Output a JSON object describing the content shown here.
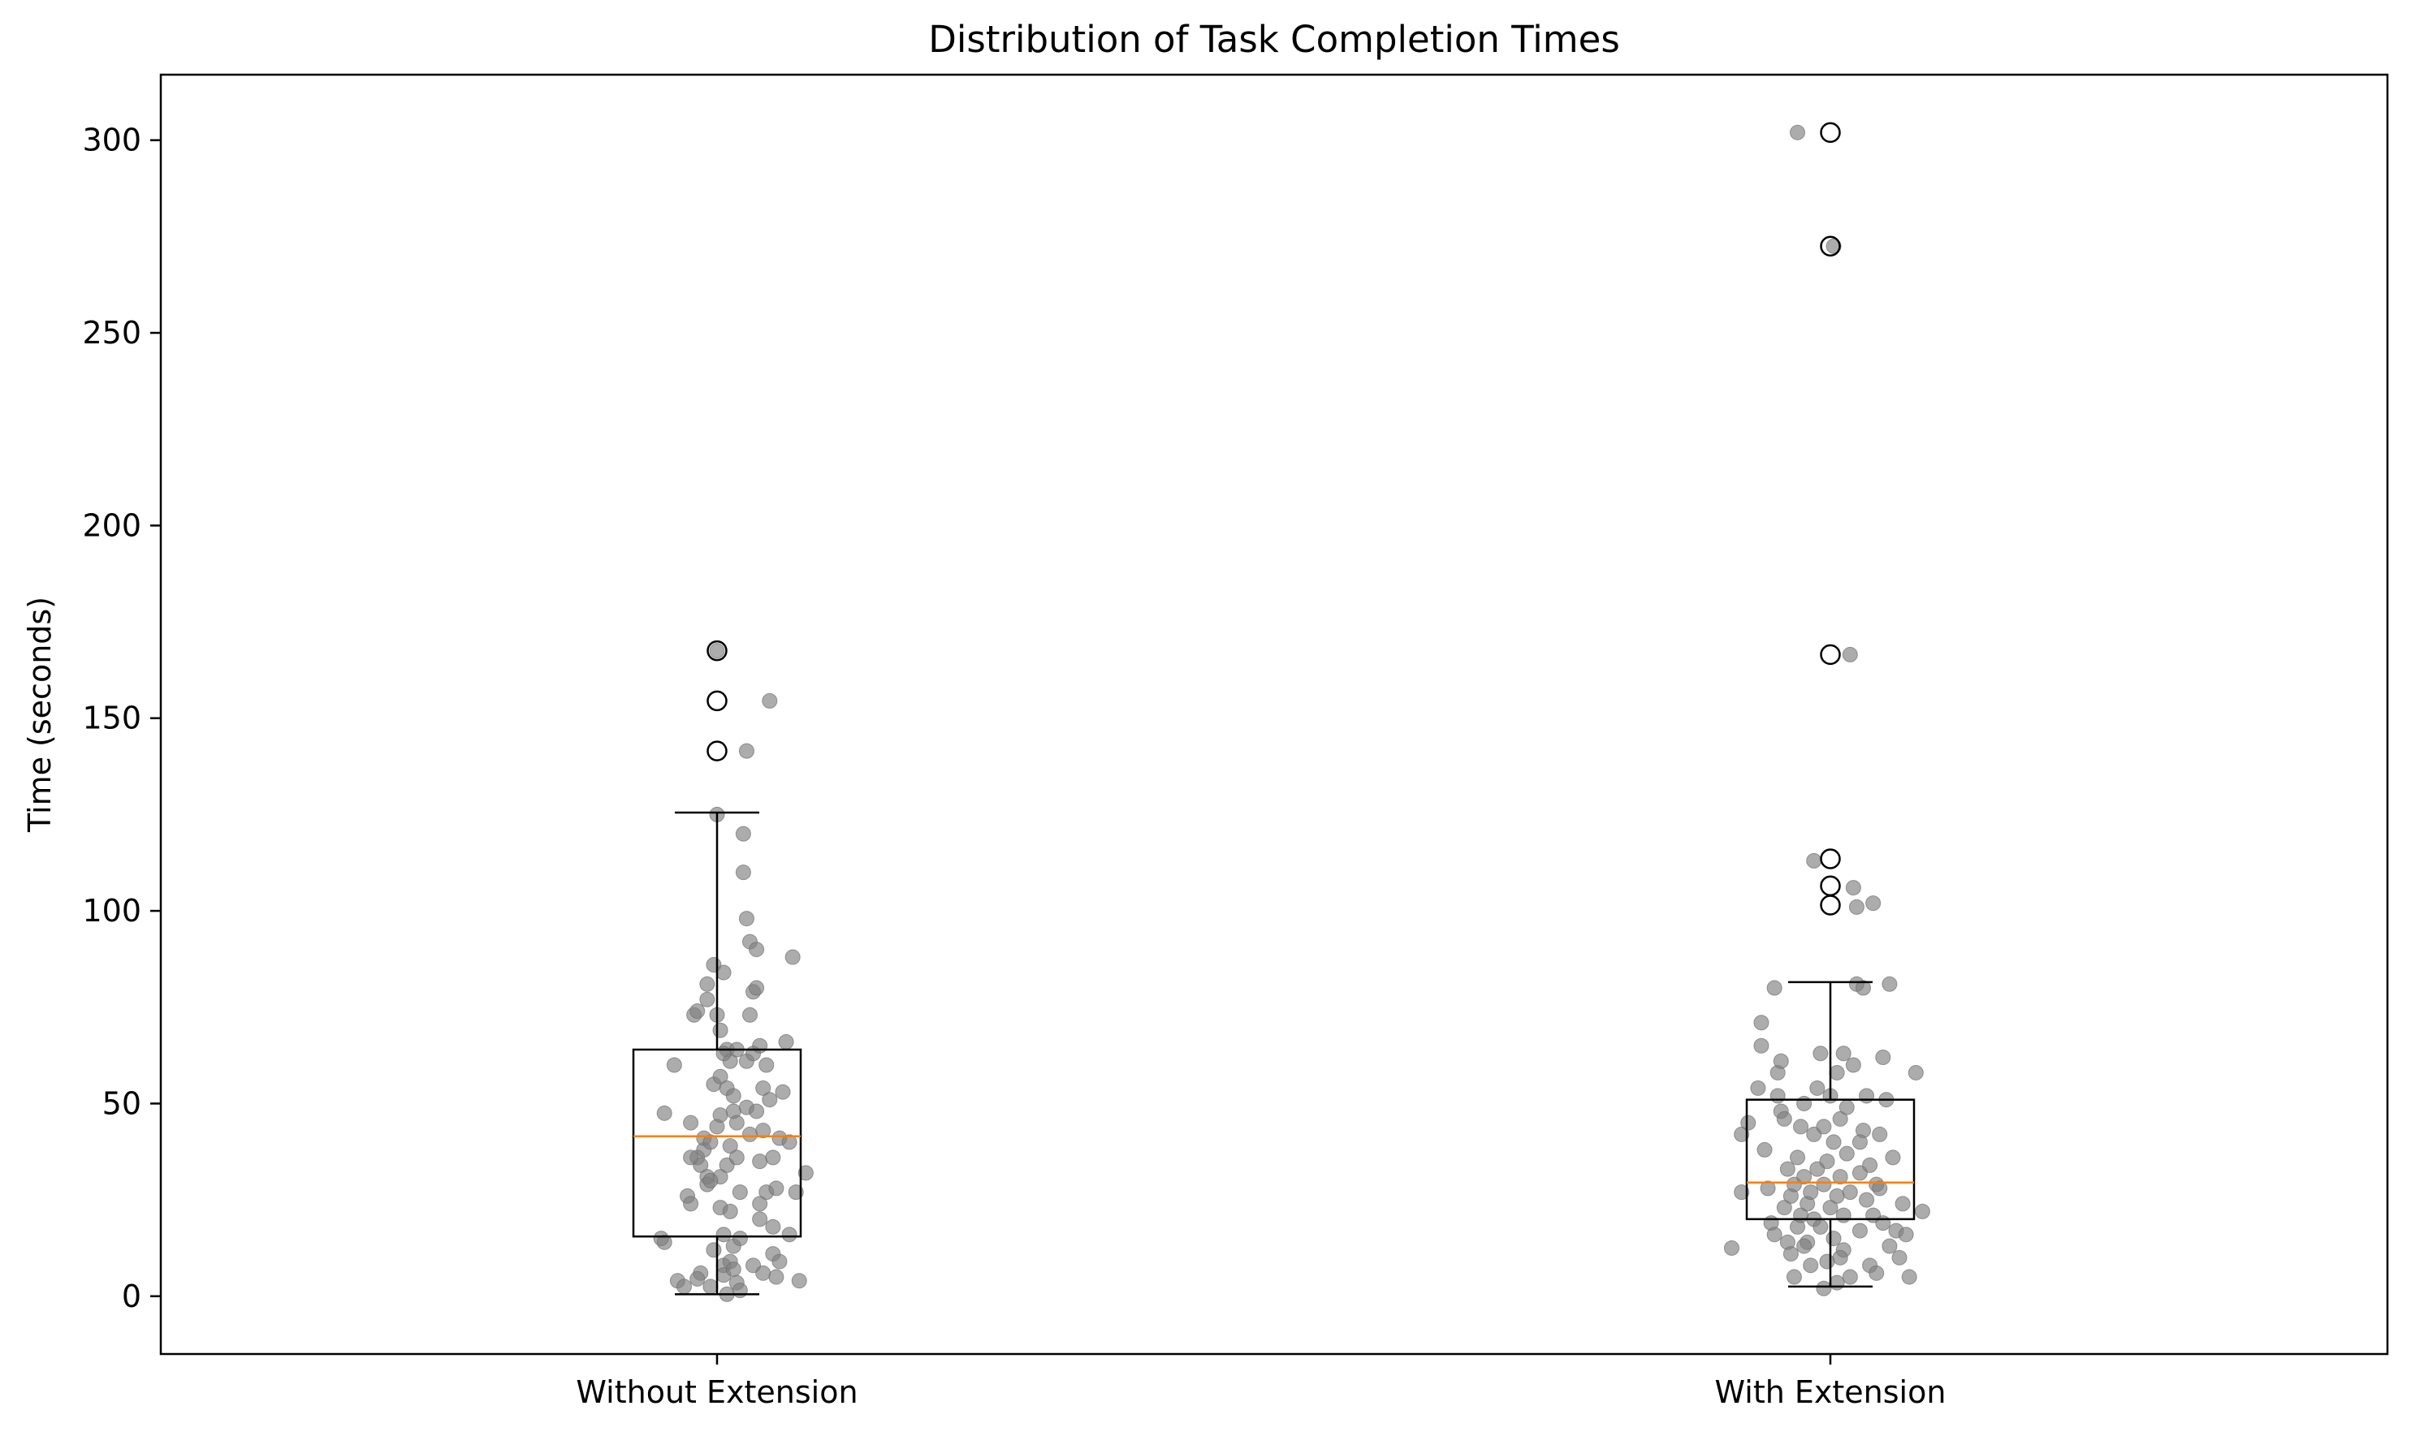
{
  "colors": {
    "median": "#ff7f0e",
    "box": "#000000",
    "jitter": "#808080",
    "outlier_edge": "#000000",
    "background": "#ffffff"
  },
  "chart_data": {
    "type": "box",
    "title": "Distribution of Task Completion Times",
    "xlabel": "",
    "ylabel": "Time (seconds)",
    "ylim": [
      -15,
      317
    ],
    "yticks": [
      0,
      50,
      100,
      150,
      200,
      250,
      300
    ],
    "ytick_labels": [
      "0",
      "50",
      "100",
      "150",
      "200",
      "250",
      "300"
    ],
    "grid": false,
    "legend": "none",
    "categories": [
      "Without Extension",
      "With Extension"
    ],
    "boxes": [
      {
        "whisker_low": 0.5,
        "q1": 15.5,
        "median": 41.5,
        "q3": 64,
        "whisker_high": 125.5,
        "outliers": [
          167.5,
          154.5,
          141.5
        ]
      },
      {
        "whisker_low": 2.5,
        "q1": 20,
        "median": 29.5,
        "q3": 51,
        "whisker_high": 81.5,
        "outliers": [
          302,
          272.5,
          166.5,
          113.5,
          106.5,
          101.5
        ]
      }
    ],
    "jitter_points": [
      [
        [
          -0.16,
          47.5
        ],
        [
          -0.13,
          60
        ],
        [
          -0.16,
          14
        ],
        [
          -0.17,
          15
        ],
        [
          -0.12,
          4
        ],
        [
          -0.1,
          2.5
        ],
        [
          -0.09,
          26
        ],
        [
          -0.08,
          24
        ],
        [
          -0.08,
          45
        ],
        [
          -0.07,
          73
        ],
        [
          -0.06,
          74
        ],
        [
          -0.06,
          36
        ],
        [
          -0.05,
          6
        ],
        [
          -0.05,
          34
        ],
        [
          -0.04,
          38
        ],
        [
          -0.04,
          41
        ],
        [
          -0.03,
          81
        ],
        [
          -0.03,
          77
        ],
        [
          -0.03,
          31
        ],
        [
          -0.03,
          29
        ],
        [
          -0.02,
          40
        ],
        [
          -0.02,
          2.5
        ],
        [
          -0.01,
          12
        ],
        [
          -0.01,
          55
        ],
        [
          -0.01,
          86
        ],
        [
          0.0,
          73
        ],
        [
          0.0,
          44
        ],
        [
          -0.06,
          4.5
        ],
        [
          0.01,
          57
        ],
        [
          0.01,
          69
        ],
        [
          0.01,
          47
        ],
        [
          0.01,
          31
        ],
        [
          0.01,
          23
        ],
        [
          0.02,
          16
        ],
        [
          0.02,
          8
        ],
        [
          0.02,
          5.5
        ],
        [
          0.03,
          34
        ],
        [
          0.03,
          54
        ],
        [
          0.03,
          64
        ],
        [
          0.04,
          39
        ],
        [
          0.04,
          22
        ],
        [
          0.04,
          9
        ],
        [
          0.04,
          61
        ],
        [
          0.02,
          84
        ],
        [
          0.0,
          125
        ],
        [
          0.05,
          52
        ],
        [
          0.05,
          48
        ],
        [
          0.05,
          7
        ],
        [
          0.05,
          13
        ],
        [
          0.06,
          36
        ],
        [
          0.06,
          45
        ],
        [
          0.06,
          64
        ],
        [
          0.06,
          3.5
        ],
        [
          0.07,
          27
        ],
        [
          0.07,
          15
        ],
        [
          0.08,
          120
        ],
        [
          0.08,
          110
        ],
        [
          0.09,
          98
        ],
        [
          0.09,
          61
        ],
        [
          0.09,
          49
        ],
        [
          0.1,
          92
        ],
        [
          0.1,
          73
        ],
        [
          0.1,
          42
        ],
        [
          0.11,
          79
        ],
        [
          0.11,
          63
        ],
        [
          0.11,
          8
        ],
        [
          0.12,
          90
        ],
        [
          0.12,
          80
        ],
        [
          0.12,
          48
        ],
        [
          0.13,
          65
        ],
        [
          0.13,
          35
        ],
        [
          0.13,
          20
        ],
        [
          0.14,
          54
        ],
        [
          0.14,
          43
        ],
        [
          0.14,
          6
        ],
        [
          0.15,
          27
        ],
        [
          0.15,
          60
        ],
        [
          0.16,
          51
        ],
        [
          0.17,
          18
        ],
        [
          0.17,
          36
        ],
        [
          0.17,
          11
        ],
        [
          0.18,
          28
        ],
        [
          0.18,
          5
        ],
        [
          0.19,
          41
        ],
        [
          0.2,
          53
        ],
        [
          0.21,
          66
        ],
        [
          0.22,
          40
        ],
        [
          0.23,
          88
        ],
        [
          0.24,
          27
        ],
        [
          0.25,
          4
        ],
        [
          0.27,
          32
        ],
        [
          0.16,
          154.5
        ],
        [
          0.09,
          141.5
        ],
        [
          0.0,
          167.5
        ],
        [
          0.03,
          0.5
        ],
        [
          0.07,
          1.5
        ],
        [
          -0.02,
          30
        ],
        [
          0.02,
          63
        ],
        [
          -0.08,
          36
        ],
        [
          0.19,
          9
        ],
        [
          0.22,
          16
        ],
        [
          0.13,
          24
        ]
      ],
      [
        [
          -0.3,
          12.5
        ],
        [
          -0.27,
          27
        ],
        [
          -0.27,
          42
        ],
        [
          -0.25,
          45
        ],
        [
          -0.22,
          54
        ],
        [
          -0.21,
          65
        ],
        [
          -0.21,
          71
        ],
        [
          -0.2,
          38
        ],
        [
          -0.19,
          28
        ],
        [
          -0.18,
          19
        ],
        [
          -0.17,
          16
        ],
        [
          -0.17,
          80
        ],
        [
          -0.16,
          52
        ],
        [
          -0.16,
          58
        ],
        [
          -0.15,
          61
        ],
        [
          -0.15,
          48
        ],
        [
          -0.14,
          23
        ],
        [
          -0.13,
          33
        ],
        [
          -0.13,
          14
        ],
        [
          -0.12,
          26
        ],
        [
          -0.12,
          11
        ],
        [
          -0.11,
          29
        ],
        [
          -0.1,
          36
        ],
        [
          -0.1,
          18
        ],
        [
          -0.09,
          44
        ],
        [
          -0.09,
          21
        ],
        [
          -0.08,
          50
        ],
        [
          -0.08,
          31
        ],
        [
          -0.07,
          24
        ],
        [
          -0.07,
          14
        ],
        [
          -0.06,
          27
        ],
        [
          -0.06,
          8
        ],
        [
          -0.05,
          42
        ],
        [
          -0.05,
          20
        ],
        [
          -0.04,
          54
        ],
        [
          -0.04,
          33
        ],
        [
          -0.03,
          18
        ],
        [
          -0.03,
          63
        ],
        [
          -0.02,
          44
        ],
        [
          -0.02,
          29
        ],
        [
          -0.01,
          9
        ],
        [
          -0.01,
          35
        ],
        [
          0.0,
          23
        ],
        [
          0.0,
          52
        ],
        [
          0.01,
          40
        ],
        [
          0.01,
          15
        ],
        [
          0.02,
          58
        ],
        [
          0.02,
          26
        ],
        [
          0.02,
          3.5
        ],
        [
          0.03,
          46
        ],
        [
          0.03,
          31
        ],
        [
          0.04,
          21
        ],
        [
          0.04,
          12
        ],
        [
          0.05,
          37
        ],
        [
          0.05,
          49
        ],
        [
          0.06,
          27
        ],
        [
          0.06,
          5
        ],
        [
          0.07,
          106
        ],
        [
          0.07,
          60
        ],
        [
          0.08,
          101
        ],
        [
          0.08,
          81
        ],
        [
          0.09,
          32
        ],
        [
          0.09,
          17
        ],
        [
          0.1,
          43
        ],
        [
          0.1,
          80
        ],
        [
          0.11,
          25
        ],
        [
          0.11,
          52
        ],
        [
          0.12,
          8
        ],
        [
          0.12,
          34
        ],
        [
          0.13,
          102
        ],
        [
          0.13,
          21
        ],
        [
          0.14,
          6
        ],
        [
          0.14,
          29
        ],
        [
          0.15,
          42
        ],
        [
          0.16,
          62
        ],
        [
          0.16,
          19
        ],
        [
          0.17,
          51
        ],
        [
          0.18,
          13
        ],
        [
          0.18,
          81
        ],
        [
          0.19,
          36
        ],
        [
          0.2,
          17
        ],
        [
          0.21,
          10
        ],
        [
          0.22,
          24
        ],
        [
          0.23,
          16
        ],
        [
          0.24,
          5
        ],
        [
          0.26,
          58
        ],
        [
          0.28,
          22
        ],
        [
          -0.1,
          302
        ],
        [
          0.01,
          272.5
        ],
        [
          0.06,
          166.5
        ],
        [
          -0.05,
          113
        ],
        [
          -0.08,
          13
        ],
        [
          -0.14,
          46
        ],
        [
          0.04,
          63
        ],
        [
          -0.02,
          2
        ],
        [
          0.09,
          40
        ],
        [
          0.15,
          28
        ],
        [
          -0.11,
          5
        ],
        [
          0.03,
          10
        ]
      ]
    ]
  }
}
